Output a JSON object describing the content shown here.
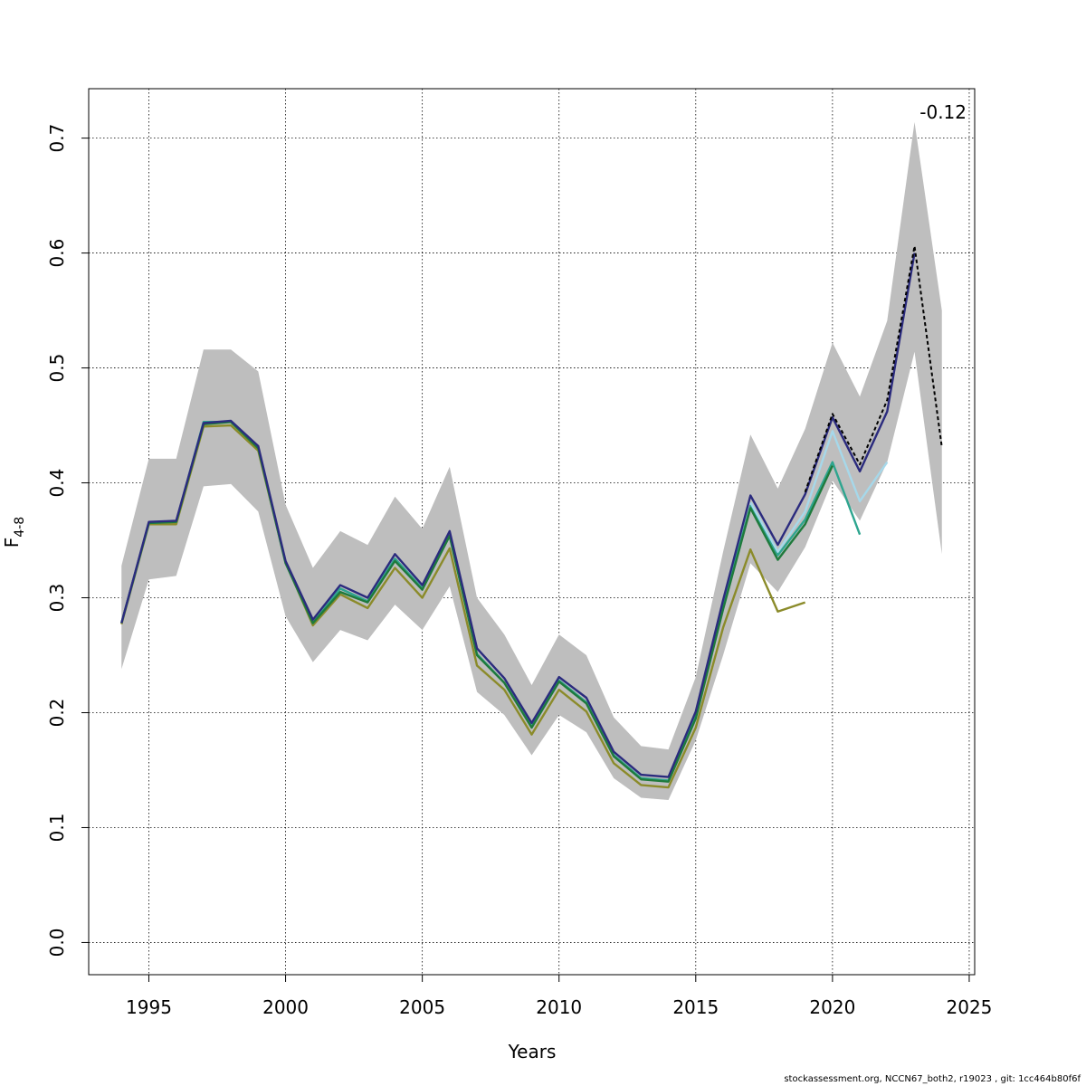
{
  "chart_data": {
    "type": "line",
    "title": "",
    "xlabel": "Years",
    "ylabel": "F",
    "ylabel_subscript": "4-8",
    "xlim": [
      1992.8,
      2025.2
    ],
    "ylim": [
      -0.028,
      0.743
    ],
    "xticks": [
      1995,
      2000,
      2005,
      2010,
      2015,
      2020,
      2025
    ],
    "yticks": [
      0.0,
      0.1,
      0.2,
      0.3,
      0.4,
      0.5,
      0.6,
      0.7
    ],
    "xtick_labels": [
      "1995",
      "2000",
      "2005",
      "2010",
      "2015",
      "2020",
      "2025"
    ],
    "ytick_labels": [
      "0.0",
      "0.1",
      "0.2",
      "0.3",
      "0.4",
      "0.5",
      "0.6",
      "0.7"
    ],
    "grid": true,
    "annotation": "-0.12",
    "confidence_band": {
      "color": "#bebebe",
      "x": [
        1994,
        1995,
        1996,
        1997,
        1998,
        1999,
        2000,
        2001,
        2002,
        2003,
        2004,
        2005,
        2006,
        2007,
        2008,
        2009,
        2010,
        2011,
        2012,
        2013,
        2014,
        2015,
        2016,
        2017,
        2018,
        2019,
        2020,
        2021,
        2022,
        2023,
        2024
      ],
      "lower": [
        0.238,
        0.316,
        0.319,
        0.397,
        0.399,
        0.375,
        0.284,
        0.244,
        0.272,
        0.263,
        0.294,
        0.272,
        0.31,
        0.218,
        0.198,
        0.163,
        0.198,
        0.183,
        0.143,
        0.126,
        0.124,
        0.176,
        0.25,
        0.33,
        0.305,
        0.344,
        0.402,
        0.367,
        0.418,
        0.514,
        0.338
      ],
      "upper": [
        0.328,
        0.421,
        0.421,
        0.516,
        0.516,
        0.497,
        0.381,
        0.326,
        0.358,
        0.346,
        0.388,
        0.36,
        0.414,
        0.3,
        0.268,
        0.224,
        0.268,
        0.25,
        0.196,
        0.171,
        0.168,
        0.231,
        0.34,
        0.442,
        0.395,
        0.447,
        0.522,
        0.475,
        0.541,
        0.714,
        0.55
      ]
    },
    "series": [
      {
        "color": "#8b8b2a",
        "dash": false,
        "x": [
          1994,
          1995,
          1996,
          1997,
          1998,
          1999,
          2000,
          2001,
          2002,
          2003,
          2004,
          2005,
          2006,
          2007,
          2008,
          2009,
          2010,
          2011,
          2012,
          2013,
          2014,
          2015,
          2016,
          2017,
          2018,
          2019
        ],
        "values": [
          0.277,
          0.364,
          0.364,
          0.449,
          0.45,
          0.428,
          0.331,
          0.276,
          0.303,
          0.291,
          0.326,
          0.3,
          0.343,
          0.241,
          0.22,
          0.181,
          0.22,
          0.201,
          0.156,
          0.137,
          0.135,
          0.187,
          0.274,
          0.342,
          0.288,
          0.296
        ]
      },
      {
        "color": "#2ea58f",
        "dash": false,
        "x": [
          1994,
          1995,
          1996,
          1997,
          1998,
          1999,
          2000,
          2001,
          2002,
          2003,
          2004,
          2005,
          2006,
          2007,
          2008,
          2009,
          2010,
          2011,
          2012,
          2013,
          2014,
          2015,
          2016,
          2017,
          2018,
          2019,
          2020,
          2021
        ],
        "values": [
          0.278,
          0.365,
          0.366,
          0.453,
          0.453,
          0.431,
          0.331,
          0.278,
          0.308,
          0.297,
          0.334,
          0.308,
          0.354,
          0.251,
          0.226,
          0.188,
          0.228,
          0.209,
          0.163,
          0.143,
          0.141,
          0.197,
          0.293,
          0.38,
          0.337,
          0.368,
          0.418,
          0.355
        ]
      },
      {
        "color": "#a6d8ea",
        "dash": false,
        "x": [
          2017,
          2018,
          2019,
          2020,
          2021,
          2022
        ],
        "values": [
          0.383,
          0.34,
          0.375,
          0.445,
          0.384,
          0.418
        ]
      },
      {
        "color": "#1f7a3c",
        "dash": false,
        "x": [
          1994,
          1995,
          1996,
          1997,
          1998,
          1999,
          2000,
          2001,
          2002,
          2003,
          2004,
          2005,
          2006,
          2007,
          2008,
          2009,
          2010,
          2011,
          2012,
          2013,
          2014,
          2015,
          2016,
          2017,
          2018,
          2019,
          2020
        ],
        "values": [
          0.278,
          0.365,
          0.366,
          0.451,
          0.453,
          0.43,
          0.33,
          0.278,
          0.305,
          0.296,
          0.332,
          0.307,
          0.354,
          0.25,
          0.226,
          0.187,
          0.227,
          0.208,
          0.162,
          0.142,
          0.14,
          0.195,
          0.29,
          0.378,
          0.333,
          0.364,
          0.415
        ]
      },
      {
        "color": "#2b2b7e",
        "dash": false,
        "x": [
          1994,
          1995,
          1996,
          1997,
          1998,
          1999,
          2000,
          2001,
          2002,
          2003,
          2004,
          2005,
          2006,
          2007,
          2008,
          2009,
          2010,
          2011,
          2012,
          2013,
          2014,
          2015,
          2016,
          2017,
          2018,
          2019,
          2020,
          2021,
          2022,
          2023
        ],
        "values": [
          0.278,
          0.366,
          0.367,
          0.452,
          0.454,
          0.432,
          0.332,
          0.281,
          0.311,
          0.3,
          0.338,
          0.311,
          0.358,
          0.256,
          0.23,
          0.191,
          0.231,
          0.213,
          0.166,
          0.146,
          0.144,
          0.201,
          0.298,
          0.389,
          0.346,
          0.39,
          0.457,
          0.41,
          0.462,
          0.6
        ]
      },
      {
        "color": "#000000",
        "dash": true,
        "x": [
          2019,
          2020,
          2021,
          2022,
          2023,
          2024
        ],
        "values": [
          0.392,
          0.46,
          0.416,
          0.472,
          0.606,
          0.431
        ]
      }
    ]
  },
  "footer_text": "stockassessment.org, NCCN67_both2, r19023 , git: 1cc464b80f6f"
}
